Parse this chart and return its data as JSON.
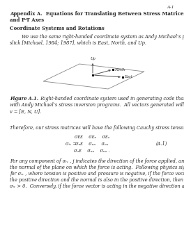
{
  "page_number": "A-1",
  "title_line1": "Appendix A.  Equations for Translating Between Stress Matrices, Fault Parameters,",
  "title_line2": "and P-T Axes",
  "section_heading": "Coordinate Systems and Rotations",
  "para1": "        We use the same right-handed coordinate system as Andy Michael’s program,",
  "para2": "slick [Michael, 1984; 1987], which is East, North, and Up.",
  "fig_caption_bold": "Figure A.1.",
  "fig_caption_rest": "  Right-handed coordinate system used in generating code that is compatible",
  "fig_caption2": "with Andy Michael’s stress inversion programs.  All vectors generated will have a format",
  "fig_caption3": "v = [E, N, U].",
  "para3": "Therefore, our stress matrices will have the following Cauchy stress tensor format:",
  "eq_label": "(A.1)",
  "para4": "For any component of σ",
  "para4b": " , j indicates the direction of the force applied, and i describes",
  "para5": "the normal of the plane on which the force is acting.  Following physics sign convention",
  "para6": "for σ",
  "para6b": " , where tension is positive and pressure is negative, if the force vector is acting in",
  "para7": "the positive direction and the normal is also in the positive direction, then the component",
  "para8": "σ",
  "para8b": " > 0.  Conversely, if the force vector is acting in the negative direction and the normal",
  "bg_color": "#ffffff",
  "text_color": "#2a2a2a",
  "gray_color": "#555555"
}
